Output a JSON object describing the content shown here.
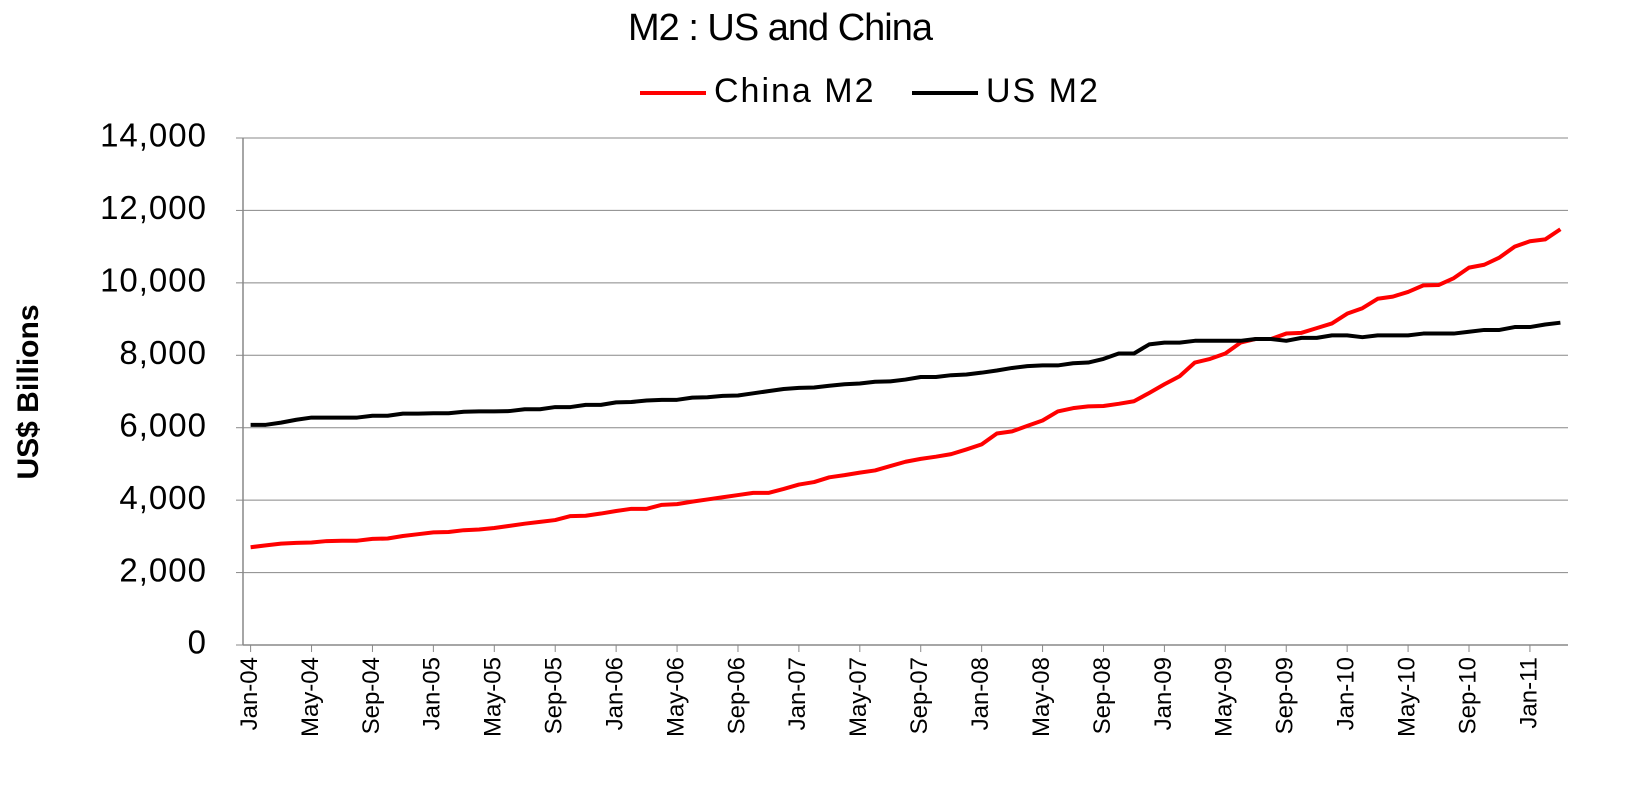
{
  "chart_data": {
    "type": "line",
    "title": "M2 : US and China",
    "y_label": "US$ Billions",
    "categories": [
      "Jan-04",
      null,
      null,
      null,
      "May-04",
      null,
      null,
      null,
      "Sep-04",
      null,
      null,
      null,
      "Jan-05",
      null,
      null,
      null,
      "May-05",
      null,
      null,
      null,
      "Sep-05",
      null,
      null,
      null,
      "Jan-06",
      null,
      null,
      null,
      "May-06",
      null,
      null,
      null,
      "Sep-06",
      null,
      null,
      null,
      "Jan-07",
      null,
      null,
      null,
      "May-07",
      null,
      null,
      null,
      "Sep-07",
      null,
      null,
      null,
      "Jan-08",
      null,
      null,
      null,
      "May-08",
      null,
      null,
      null,
      "Sep-08",
      null,
      null,
      null,
      "Jan-09",
      null,
      null,
      null,
      "May-09",
      null,
      null,
      null,
      "Sep-09",
      null,
      null,
      null,
      "Jan-10",
      null,
      null,
      null,
      "May-10",
      null,
      null,
      null,
      "Sep-10",
      null,
      null,
      null,
      "Jan-11",
      null,
      null
    ],
    "series": [
      {
        "name": "China M2",
        "color": "#ff0000",
        "values": [
          2700,
          2750,
          2800,
          2820,
          2830,
          2870,
          2880,
          2880,
          2930,
          2940,
          3010,
          3060,
          3110,
          3120,
          3170,
          3190,
          3230,
          3290,
          3350,
          3400,
          3450,
          3560,
          3570,
          3630,
          3700,
          3760,
          3760,
          3870,
          3890,
          3960,
          4020,
          4080,
          4140,
          4200,
          4200,
          4310,
          4430,
          4500,
          4630,
          4690,
          4760,
          4820,
          4940,
          5060,
          5140,
          5200,
          5270,
          5400,
          5540,
          5840,
          5900,
          6050,
          6200,
          6450,
          6540,
          6590,
          6600,
          6660,
          6730,
          6960,
          7200,
          7420,
          7800,
          7900,
          8050,
          8350,
          8450,
          8450,
          8600,
          8620,
          8750,
          8880,
          9150,
          9300,
          9560,
          9620,
          9750,
          9930,
          9940,
          10130,
          10420,
          10500,
          10700,
          11000,
          11150,
          11200,
          11480
        ]
      },
      {
        "name": "US M2",
        "color": "#000000",
        "values": [
          6080,
          6080,
          6140,
          6220,
          6280,
          6280,
          6280,
          6280,
          6330,
          6330,
          6390,
          6390,
          6400,
          6400,
          6440,
          6450,
          6450,
          6460,
          6510,
          6510,
          6570,
          6570,
          6630,
          6630,
          6700,
          6710,
          6750,
          6770,
          6770,
          6830,
          6840,
          6880,
          6890,
          6950,
          7010,
          7070,
          7100,
          7110,
          7160,
          7200,
          7220,
          7270,
          7280,
          7330,
          7400,
          7400,
          7450,
          7470,
          7520,
          7580,
          7650,
          7700,
          7720,
          7720,
          7780,
          7800,
          7900,
          8050,
          8050,
          8300,
          8350,
          8350,
          8400,
          8400,
          8400,
          8400,
          8450,
          8450,
          8400,
          8480,
          8480,
          8550,
          8550,
          8500,
          8550,
          8550,
          8550,
          8600,
          8600,
          8600,
          8650,
          8700,
          8700,
          8780,
          8780,
          8850,
          8900
        ]
      }
    ],
    "ylim": [
      0,
      14000
    ],
    "yticks": [
      0,
      {
        "value": 2000,
        "label": "2,000"
      },
      {
        "value": 4000,
        "label": "4,000"
      },
      {
        "value": 6000,
        "label": "6,000"
      },
      {
        "value": 8000,
        "label": "8,000"
      },
      {
        "value": 10000,
        "label": "10,000"
      },
      {
        "value": 12000,
        "label": "12,000"
      },
      {
        "value": 14000,
        "label": "14,000"
      }
    ],
    "grid": true,
    "legend": "top"
  }
}
